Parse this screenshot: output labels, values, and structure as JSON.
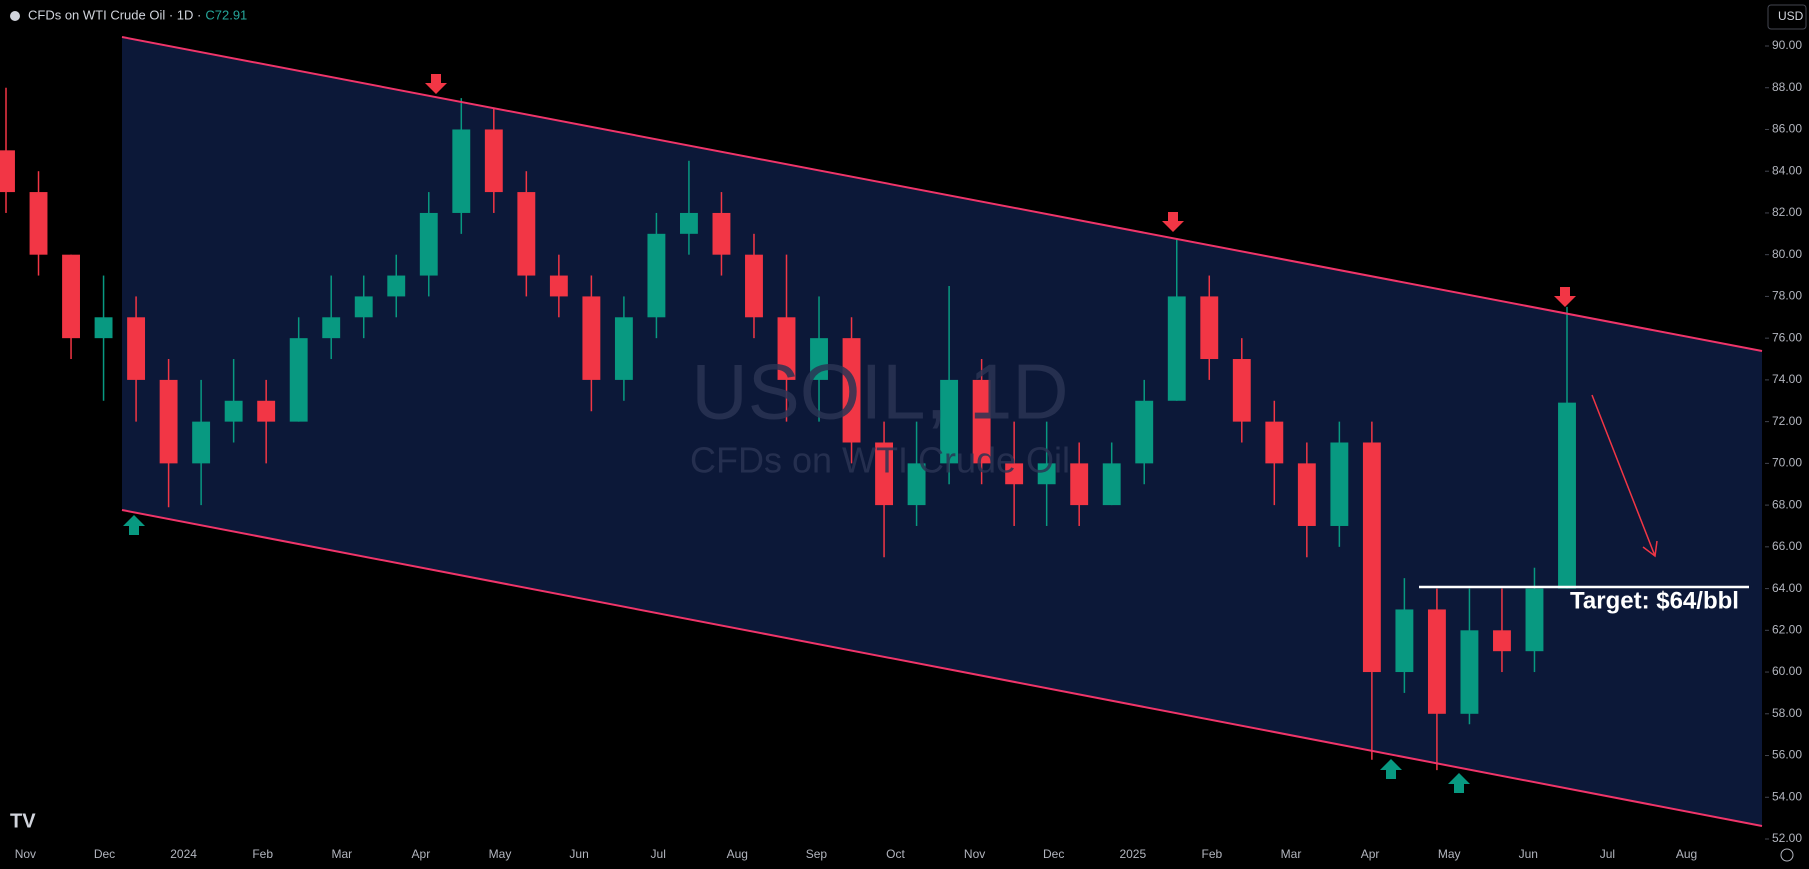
{
  "chart_data": {
    "type": "candlestick",
    "title": "CFDs on WTI Crude Oil · 1D ·",
    "close_label": "C72.91",
    "watermark_symbol": "USOIL, 1D",
    "watermark_description": "CFDs on WTI Crude Oil",
    "currency": "USD",
    "annotation": "Target: $64/bbl",
    "up_color": "#089981",
    "down_color": "#f23645",
    "categories": [
      "Nov",
      "Dec",
      "2024",
      "Feb",
      "Mar",
      "Apr",
      "May",
      "Jun",
      "Jul",
      "Aug",
      "Sep",
      "Oct",
      "Nov",
      "Dec",
      "2025",
      "Feb",
      "Mar",
      "Apr",
      "May",
      "Jun",
      "Jul",
      "Aug"
    ],
    "open": [
      85,
      83,
      80,
      76,
      77,
      74,
      70,
      72,
      73,
      72,
      76,
      77,
      78,
      79,
      82,
      86,
      83,
      79,
      78,
      74,
      77,
      81,
      82,
      80,
      77,
      74,
      76,
      71,
      68,
      70,
      74,
      70,
      69,
      70,
      68,
      70,
      73,
      78,
      75,
      72,
      70,
      67,
      71,
      60,
      63,
      58,
      62,
      61,
      64
    ],
    "high": [
      88,
      84,
      80,
      79,
      78,
      75,
      74,
      75,
      74,
      77,
      79,
      79,
      80,
      83,
      87.5,
      87,
      84,
      80,
      79,
      78,
      82,
      84.5,
      83,
      81,
      80,
      78,
      77,
      72,
      72,
      78.5,
      75,
      72,
      72,
      71,
      71,
      74,
      80.8,
      79,
      76,
      73,
      71,
      72,
      72,
      64.5,
      64,
      64,
      64,
      65,
      77.5
    ],
    "low": [
      82,
      79,
      75,
      73,
      72,
      67.9,
      68,
      71,
      70,
      72,
      75,
      76,
      77,
      78,
      81,
      82,
      78,
      77,
      72.5,
      73,
      76,
      80,
      79,
      76,
      72,
      72,
      70,
      65.5,
      67,
      69,
      69,
      67,
      67,
      67,
      68,
      69,
      73,
      74,
      71,
      68,
      65.5,
      66,
      55.8,
      59,
      55.3,
      57.5,
      60,
      60,
      64
    ],
    "close": [
      83,
      80,
      76,
      77,
      74,
      70,
      72,
      73,
      72,
      76,
      77,
      78,
      79,
      82,
      86,
      83,
      79,
      78,
      74,
      77,
      81,
      82,
      80,
      77,
      74,
      76,
      71,
      68,
      70,
      74,
      70,
      69,
      70,
      68,
      70,
      73,
      78,
      75,
      72,
      70,
      67,
      71,
      60,
      63,
      58,
      62,
      61,
      64,
      72.91
    ],
    "ylim": [
      52,
      90
    ],
    "yticks": [
      {
        "value": 52,
        "label": "52.00"
      },
      {
        "value": 54,
        "label": "54.00"
      },
      {
        "value": 56,
        "label": "56.00"
      },
      {
        "value": 58,
        "label": "58.00"
      },
      {
        "value": 60,
        "label": "60.00"
      },
      {
        "value": 62,
        "label": "62.00"
      },
      {
        "value": 64,
        "label": "64.00"
      },
      {
        "value": 66,
        "label": "66.00"
      },
      {
        "value": 68,
        "label": "68.00"
      },
      {
        "value": 70,
        "label": "70.00"
      },
      {
        "value": 72,
        "label": "72.00"
      },
      {
        "value": 74,
        "label": "74.00"
      },
      {
        "value": 76,
        "label": "76.00"
      },
      {
        "value": 78,
        "label": "78.00"
      },
      {
        "value": 80,
        "label": "80.00"
      },
      {
        "value": 82,
        "label": "82.00"
      },
      {
        "value": 84,
        "label": "84.00"
      },
      {
        "value": 86,
        "label": "86.00"
      },
      {
        "value": 88,
        "label": "88.00"
      },
      {
        "value": 90,
        "label": "90.00"
      }
    ]
  }
}
